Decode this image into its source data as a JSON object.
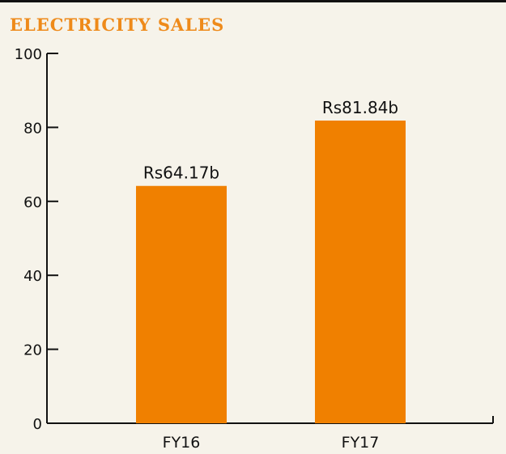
{
  "chart_data": {
    "type": "bar",
    "title": "ELECTRICITY SALES",
    "categories": [
      "FY16",
      "FY17"
    ],
    "values": [
      64.17,
      81.84
    ],
    "data_labels": [
      "Rs64.17b",
      "Rs81.84b"
    ],
    "ylim": [
      0,
      100
    ],
    "yticks": [
      0,
      20,
      40,
      60,
      80,
      100
    ],
    "xlabel": "",
    "ylabel": "",
    "grid": false,
    "bar_color": "#f08000",
    "title_color": "#ee8a1a",
    "background_color": "#f6f3ea"
  }
}
